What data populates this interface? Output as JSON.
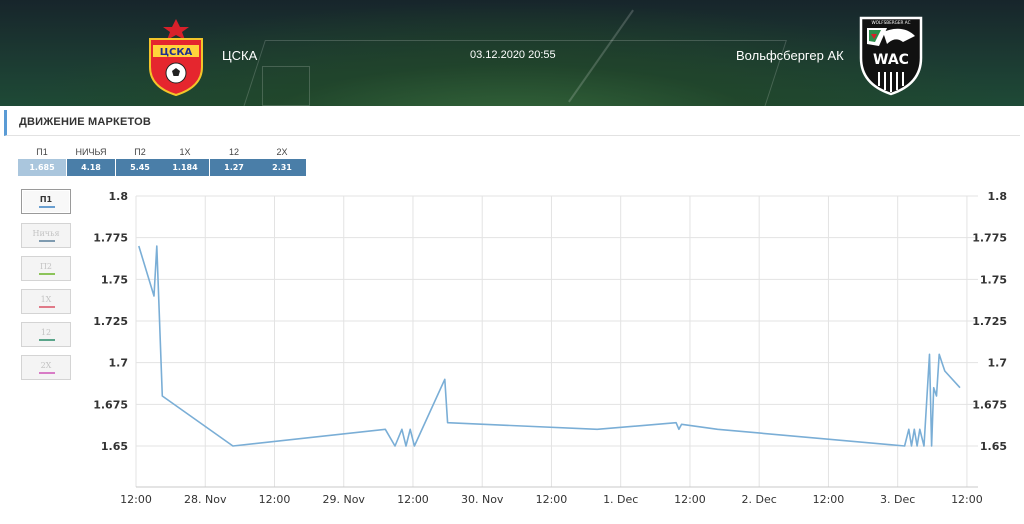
{
  "header": {
    "home_team": "ЦСКА",
    "home_logo_text": "ЦСКА",
    "away_team": "Вольфсбергер АК",
    "away_logo_text": "WAC",
    "away_logo_caption": "WOLFSBERGER AC",
    "datetime": "03.12.2020 20:55"
  },
  "section": {
    "title": "ДВИЖЕНИЕ МАРКЕТОВ"
  },
  "odds": [
    {
      "label": "П1",
      "value": "1.685",
      "active": true
    },
    {
      "label": "НИЧЬЯ",
      "value": "4.18",
      "active": false
    },
    {
      "label": "П2",
      "value": "5.45",
      "active": false
    },
    {
      "label": "1X",
      "value": "1.184",
      "active": false
    },
    {
      "label": "12",
      "value": "1.27",
      "active": false
    },
    {
      "label": "2X",
      "value": "2.31",
      "active": false
    }
  ],
  "series_buttons": [
    {
      "label": "П1",
      "color": "#6a9fd0",
      "selected": true
    },
    {
      "label": "Ничья",
      "color": "#7f9bb0",
      "selected": false
    },
    {
      "label": "П2",
      "color": "#8cc45a",
      "selected": false
    },
    {
      "label": "1X",
      "color": "#e07a88",
      "selected": false
    },
    {
      "label": "12",
      "color": "#5aa58a",
      "selected": false
    },
    {
      "label": "2X",
      "color": "#d87cc6",
      "selected": false
    }
  ],
  "chart_data": {
    "type": "line",
    "series_color": "#7aaed6",
    "grid": true,
    "ylim": [
      1.65,
      1.8
    ],
    "xlim": [
      0,
      6.08
    ],
    "y_ticks": [
      "1.8",
      "1.775",
      "1.75",
      "1.725",
      "1.7",
      "1.675",
      "1.65"
    ],
    "y_tick_values": [
      1.8,
      1.775,
      1.75,
      1.725,
      1.7,
      1.675,
      1.65
    ],
    "x_ticks": [
      "12:00",
      "28. Nov",
      "12:00",
      "29. Nov",
      "12:00",
      "30. Nov",
      "12:00",
      "1. Dec",
      "12:00",
      "2. Dec",
      "12:00",
      "3. Dec",
      "12:00"
    ],
    "x_tick_values": [
      0,
      0.5,
      1,
      1.5,
      2,
      2.5,
      3,
      3.5,
      4,
      4.5,
      5,
      5.5,
      6
    ],
    "x": [
      0.02,
      0.13,
      0.15,
      0.19,
      0.7,
      1.8,
      1.87,
      1.92,
      1.95,
      1.98,
      2.01,
      2.23,
      2.25,
      3.33,
      3.9,
      3.92,
      3.94,
      4.2,
      5.55,
      5.58,
      5.6,
      5.62,
      5.64,
      5.66,
      5.69,
      5.73,
      5.745,
      5.76,
      5.78,
      5.8,
      5.82,
      5.84,
      5.95
    ],
    "values": [
      1.77,
      1.74,
      1.77,
      1.68,
      1.65,
      1.66,
      1.65,
      1.66,
      1.65,
      1.66,
      1.65,
      1.69,
      1.664,
      1.66,
      1.664,
      1.66,
      1.663,
      1.66,
      1.65,
      1.66,
      1.65,
      1.66,
      1.65,
      1.66,
      1.65,
      1.705,
      1.65,
      1.685,
      1.68,
      1.705,
      1.7,
      1.695,
      1.685
    ]
  }
}
